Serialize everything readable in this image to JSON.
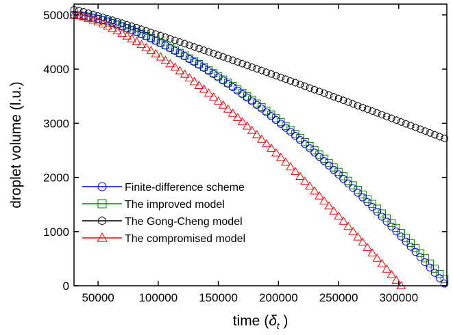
{
  "chart_data": {
    "type": "scatter",
    "xlabel": "time (δt )",
    "xlabel_main": "time (",
    "xlabel_sym": "δ",
    "xlabel_sub": "t",
    "xlabel_close": " )",
    "ylabel": "droplet volume (l.u.)",
    "xlim": [
      30000,
      340000
    ],
    "ylim": [
      0,
      5200
    ],
    "x_ticks": [
      50000,
      100000,
      150000,
      200000,
      250000,
      300000
    ],
    "x_tick_labels": [
      "50000",
      "100000",
      "150000",
      "200000",
      "250000",
      "300000"
    ],
    "y_ticks": [
      0,
      1000,
      2000,
      3000,
      4000,
      5000
    ],
    "y_tick_labels": [
      "0",
      "1000",
      "2000",
      "3000",
      "4000",
      "5000"
    ],
    "grid": false,
    "legend_position": "bottom-left",
    "x_step": 4000,
    "series": [
      {
        "name": "Finite-difference scheme",
        "marker": "circle",
        "color": "#0000ff",
        "x_start": 30000,
        "x_end": 338000,
        "y_start": 5000,
        "y_end": 40,
        "curve_exponent": 1.55
      },
      {
        "name": "The improved model",
        "marker": "square",
        "color": "#008000",
        "x_start": 30000,
        "x_end": 338000,
        "y_start": 5000,
        "y_end": 120,
        "curve_exponent": 1.55
      },
      {
        "name": "The Gong-Cheng model",
        "marker": "hexagon",
        "color": "#000000",
        "x_start": 30000,
        "x_end": 338000,
        "y_start": 5100,
        "y_end": 2720,
        "curve_exponent": 1.1
      },
      {
        "name": "The compromised model",
        "marker": "triangle",
        "color": "#ff0000",
        "x_start": 30000,
        "x_end": 302000,
        "y_start": 5000,
        "y_end": 0,
        "curve_exponent": 1.4
      }
    ]
  }
}
